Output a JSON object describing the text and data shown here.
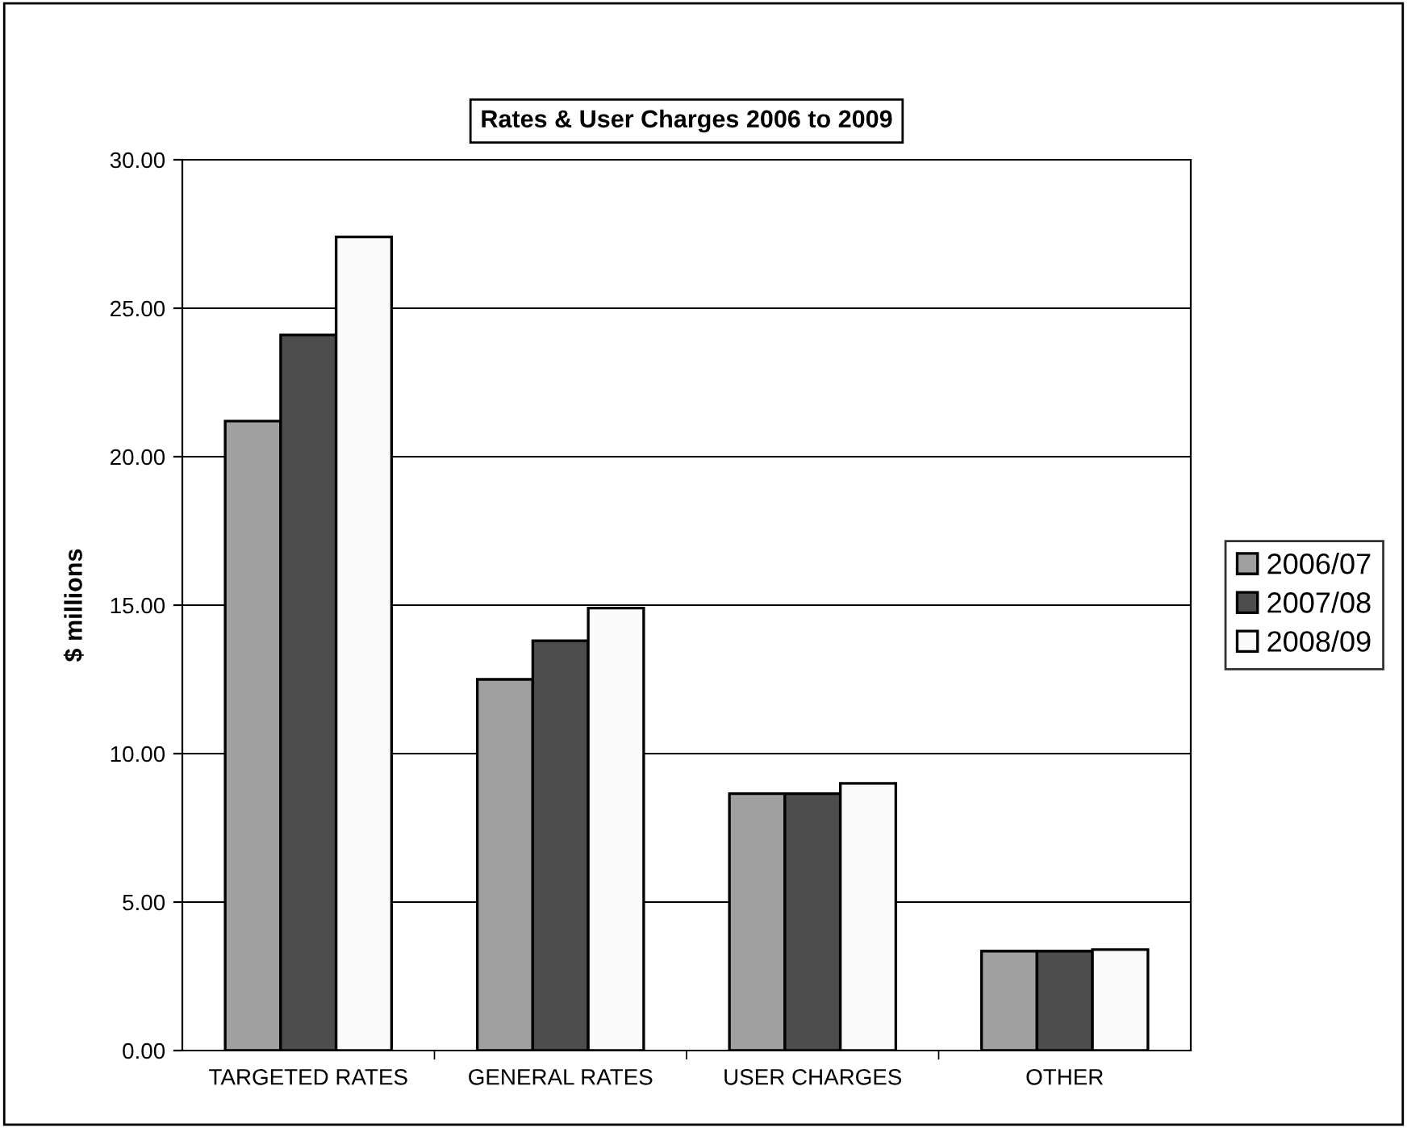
{
  "chart_data": {
    "type": "bar",
    "title": "Rates & User Charges 2006 to 2009",
    "ylabel": "$ millions",
    "categories": [
      "TARGETED RATES",
      "GENERAL RATES",
      "USER CHARGES",
      "OTHER"
    ],
    "series": [
      {
        "name": "2006/07",
        "color": "#a0a0a0",
        "values": [
          21.2,
          12.5,
          8.65,
          3.35
        ]
      },
      {
        "name": "2007/08",
        "color": "#4d4d4d",
        "values": [
          24.1,
          13.8,
          8.65,
          3.35
        ]
      },
      {
        "name": "2008/09",
        "color": "#fafafa",
        "values": [
          27.4,
          14.9,
          9.0,
          3.4
        ]
      }
    ],
    "ylim": [
      0,
      30
    ],
    "yticks": [
      {
        "value": 0,
        "label": "0.00"
      },
      {
        "value": 5,
        "label": "5.00"
      },
      {
        "value": 10,
        "label": "10.00"
      },
      {
        "value": 15,
        "label": "15.00"
      },
      {
        "value": 20,
        "label": "20.00"
      },
      {
        "value": 25,
        "label": "25.00"
      },
      {
        "value": 30,
        "label": "30.00"
      }
    ],
    "grid": "y",
    "legend": "right"
  }
}
